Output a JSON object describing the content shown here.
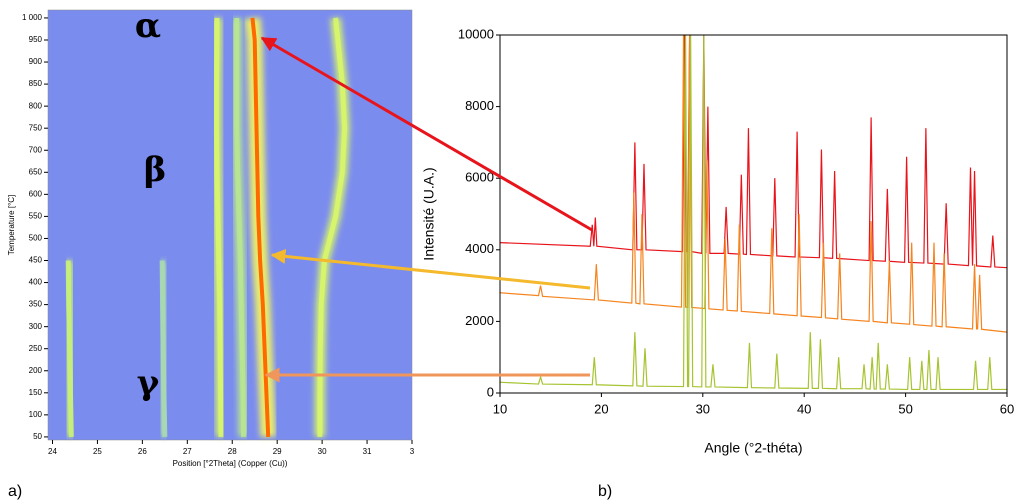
{
  "chart_data": [
    {
      "type": "heatmap",
      "label": "a)",
      "background": "#7b8cef",
      "x_label": "Position [°2Theta] (Copper (Cu))",
      "y_label": "Temperature [°C]",
      "annotations": [
        "α",
        "β",
        "γ"
      ],
      "xlim": [
        23.9,
        32
      ],
      "xticks": [
        24,
        25,
        26,
        27,
        28,
        29,
        30,
        31,
        {
          "value": 32,
          "label": "3"
        }
      ],
      "ylim": [
        43,
        1018
      ],
      "yticks": [
        50,
        100,
        150,
        200,
        250,
        300,
        350,
        400,
        450,
        500,
        550,
        600,
        650,
        700,
        750,
        800,
        850,
        900,
        950,
        {
          "value": 1000,
          "label": "1 000"
        }
      ],
      "y": [
        50,
        150,
        250,
        350,
        450,
        550,
        650,
        750,
        850,
        950,
        1000
      ],
      "series": [
        {
          "color": "#d7f56a",
          "values": [
            27.75,
            27.74,
            27.73,
            27.72,
            27.7,
            27.68,
            27.66,
            27.65,
            27.65,
            27.66,
            27.66
          ]
        },
        {
          "color": "#b8e690",
          "values": [
            28.25,
            28.24,
            28.22,
            28.2,
            28.18,
            28.15,
            28.12,
            28.1,
            28.1,
            28.1,
            28.1
          ]
        },
        {
          "color": "#d7f56a",
          "values": [
            29.95,
            29.95,
            29.96,
            29.98,
            30.05,
            30.3,
            30.45,
            30.5,
            30.45,
            30.35,
            30.3
          ]
        },
        {
          "color": "#c8ef78",
          "values": [
            24.42,
            24.4,
            24.38,
            24.36,
            24.35,
            null,
            null,
            null,
            null,
            null,
            null
          ]
        },
        {
          "color": "#a9d9b0",
          "values": [
            26.5,
            26.48,
            26.46,
            26.45,
            26.44,
            null,
            null,
            null,
            null,
            null,
            null
          ]
        },
        {
          "color": "#ff6a00",
          "values": [
            28.8,
            28.76,
            28.72,
            28.68,
            28.62,
            28.58,
            28.56,
            28.54,
            28.52,
            28.5,
            28.45
          ]
        }
      ]
    },
    {
      "type": "line",
      "label": "b)",
      "x_label": "Angle (°2-théta)",
      "y_label": "Intensité (U.A.)",
      "xlim": [
        10,
        60
      ],
      "xticks": [
        10,
        20,
        30,
        40,
        50,
        60
      ],
      "ylim": [
        0,
        10000
      ],
      "yticks": [
        0,
        2000,
        4000,
        6000,
        8000,
        10000
      ],
      "series": [
        {
          "color": "#e8141c",
          "x": [
            10,
            18.9,
            19.1,
            19.25,
            19.4,
            19.55,
            23.1,
            23.3,
            23.5,
            24.0,
            24.2,
            24.4,
            28.0,
            28.2,
            28.4,
            28.5,
            28.7,
            28.9,
            29.9,
            30.1,
            30.3,
            30.5,
            30.7,
            32.1,
            32.3,
            32.5,
            33.6,
            33.8,
            34.0,
            34.3,
            34.5,
            34.7,
            36.9,
            37.1,
            37.3,
            39.1,
            39.3,
            39.5,
            41.5,
            41.7,
            41.9,
            42.8,
            43.0,
            43.2,
            46.4,
            46.6,
            46.8,
            48.0,
            48.2,
            48.4,
            49.9,
            50.1,
            50.3,
            51.8,
            52.0,
            52.2,
            53.8,
            54.0,
            54.2,
            56.2,
            56.4,
            56.6,
            56.8,
            57.0,
            58.4,
            58.6,
            58.8,
            60
          ],
          "values": [
            4200,
            4100,
            4700,
            4100,
            4900,
            4100,
            4000,
            7000,
            4000,
            4000,
            6400,
            4000,
            3950,
            10000,
            3950,
            3950,
            10000,
            3950,
            3900,
            10000,
            3900,
            8000,
            3900,
            3900,
            5200,
            3900,
            3880,
            6100,
            3880,
            3870,
            7400,
            3870,
            3830,
            6000,
            3830,
            3800,
            7300,
            3800,
            3780,
            6800,
            3780,
            3760,
            6200,
            3760,
            3700,
            7700,
            3700,
            3680,
            5700,
            3680,
            3650,
            6600,
            3650,
            3630,
            7400,
            3630,
            3600,
            5300,
            3600,
            3560,
            6300,
            3560,
            6200,
            3550,
            3520,
            4400,
            3520,
            3500
          ]
        },
        {
          "color": "#f5841f",
          "x": [
            10,
            13.8,
            14.0,
            14.2,
            19.3,
            19.5,
            19.7,
            23.0,
            23.2,
            23.4,
            23.8,
            24.0,
            24.2,
            27.9,
            28.1,
            28.3,
            28.5,
            28.7,
            28.9,
            30.2,
            30.4,
            30.6,
            32.0,
            32.2,
            32.4,
            33.4,
            33.6,
            33.8,
            36.6,
            36.8,
            37.0,
            39.3,
            39.5,
            39.7,
            41.7,
            41.9,
            42.1,
            43.3,
            43.5,
            43.7,
            46.4,
            46.6,
            46.8,
            48.2,
            48.4,
            48.6,
            50.4,
            50.6,
            50.8,
            52.6,
            52.8,
            53.0,
            53.6,
            53.8,
            54.0,
            56.6,
            56.8,
            57.0,
            57.1,
            57.3,
            57.5,
            60
          ],
          "values": [
            2800,
            2720,
            3000,
            2700,
            2600,
            3600,
            2600,
            2510,
            5600,
            2510,
            2490,
            5000,
            2490,
            2400,
            10000,
            2400,
            2390,
            10000,
            2390,
            2360,
            6500,
            2350,
            2320,
            4300,
            2310,
            2290,
            4700,
            2280,
            2220,
            4600,
            2210,
            2160,
            5000,
            2150,
            2110,
            4200,
            2100,
            2070,
            3900,
            2060,
            2000,
            4800,
            2000,
            1960,
            3700,
            1960,
            1920,
            4200,
            1910,
            1870,
            4200,
            1870,
            1850,
            3900,
            1850,
            1790,
            3600,
            1790,
            1790,
            3300,
            1780,
            1700
          ]
        },
        {
          "color": "#a6c431",
          "x": [
            10,
            13.8,
            14.0,
            14.2,
            19.1,
            19.3,
            19.5,
            23.1,
            23.3,
            23.5,
            24.1,
            24.3,
            24.5,
            28.1,
            28.3,
            28.5,
            28.6,
            28.8,
            29.0,
            29.9,
            30.1,
            30.3,
            30.8,
            31.0,
            31.2,
            34.4,
            34.6,
            34.8,
            37.1,
            37.3,
            37.5,
            40.4,
            40.6,
            40.8,
            41.4,
            41.6,
            41.8,
            43.2,
            43.4,
            43.6,
            45.7,
            45.9,
            46.1,
            46.5,
            46.7,
            46.9,
            47.1,
            47.3,
            47.5,
            48.0,
            48.2,
            48.4,
            50.2,
            50.4,
            50.6,
            51.4,
            51.6,
            51.8,
            52.1,
            52.3,
            52.5,
            53.0,
            53.2,
            53.4,
            56.7,
            56.9,
            57.1,
            58.1,
            58.3,
            58.5,
            60
          ],
          "values": [
            300,
            250,
            450,
            250,
            230,
            1000,
            230,
            200,
            1700,
            200,
            190,
            1250,
            190,
            180,
            10000,
            180,
            180,
            10000,
            180,
            170,
            10000,
            170,
            170,
            800,
            170,
            150,
            1400,
            150,
            140,
            1100,
            140,
            130,
            1700,
            130,
            130,
            1500,
            130,
            120,
            1000,
            120,
            120,
            800,
            120,
            110,
            1000,
            110,
            110,
            1400,
            110,
            110,
            800,
            110,
            100,
            1000,
            100,
            100,
            900,
            100,
            100,
            1200,
            100,
            100,
            1000,
            100,
            100,
            900,
            100,
            100,
            1000,
            100,
            100
          ]
        }
      ]
    }
  ]
}
